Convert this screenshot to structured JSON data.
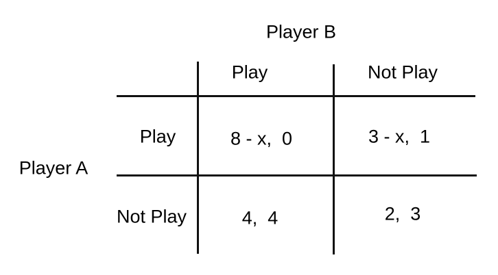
{
  "game": {
    "column_player": "Player B",
    "row_player": "Player A",
    "column_strategies": [
      "Play",
      "Not Play"
    ],
    "row_strategies": [
      "Play",
      "Not Play"
    ],
    "payoffs": [
      [
        "8 - x,  0",
        "3 - x,  1"
      ],
      [
        "4,  4",
        "2,  3"
      ]
    ]
  }
}
